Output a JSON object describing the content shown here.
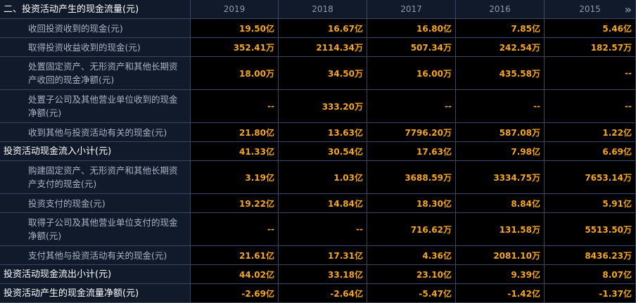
{
  "header": {
    "title": "二、投资活动产生的现金流量(元)",
    "years": [
      "2019",
      "2018",
      "2017",
      "2016",
      "2015"
    ],
    "more_icon": "»"
  },
  "rows": [
    {
      "label": "收回投资收到的现金(元)",
      "type": "item",
      "tall": false,
      "values": [
        "19.50亿",
        "16.67亿",
        "16.80亿",
        "7.85亿",
        "5.46亿"
      ]
    },
    {
      "label": "取得投资收益收到的现金(元)",
      "type": "item",
      "tall": false,
      "values": [
        "352.41万",
        "2114.34万",
        "507.34万",
        "242.54万",
        "182.57万"
      ]
    },
    {
      "label": "处置固定资产、无形资产和其他长期资产收回的现金净额(元)",
      "type": "item",
      "tall": true,
      "values": [
        "18.00万",
        "34.50万",
        "16.00万",
        "435.58万",
        "--"
      ]
    },
    {
      "label": "处置子公司及其他营业单位收到的现金净额(元)",
      "type": "item",
      "tall": true,
      "values": [
        "--",
        "333.20万",
        "--",
        "--",
        "--"
      ]
    },
    {
      "label": "收到其他与投资活动有关的现金(元)",
      "type": "item",
      "tall": false,
      "values": [
        "21.80亿",
        "13.63亿",
        "7796.20万",
        "587.08万",
        "1.22亿"
      ]
    },
    {
      "label": "投资活动现金流入小计(元)",
      "type": "section",
      "tall": false,
      "values": [
        "41.33亿",
        "30.54亿",
        "17.63亿",
        "7.98亿",
        "6.69亿"
      ]
    },
    {
      "label": "购建固定资产、无形资产和其他长期资产支付的现金(元)",
      "type": "item",
      "tall": true,
      "values": [
        "3.19亿",
        "1.03亿",
        "3688.59万",
        "3334.75万",
        "7653.14万"
      ]
    },
    {
      "label": "投资支付的现金(元)",
      "type": "item",
      "tall": false,
      "values": [
        "19.22亿",
        "14.84亿",
        "18.30亿",
        "8.84亿",
        "5.91亿"
      ]
    },
    {
      "label": "取得子公司及其他营业单位支付的现金净额(元)",
      "type": "item",
      "tall": true,
      "values": [
        "--",
        "--",
        "716.62万",
        "131.58万",
        "5513.50万"
      ]
    },
    {
      "label": "支付其他与投资活动有关的现金(元)",
      "type": "item",
      "tall": false,
      "values": [
        "21.61亿",
        "17.31亿",
        "4.36亿",
        "2081.10万",
        "8436.23万"
      ]
    },
    {
      "label": "投资活动现金流出小计(元)",
      "type": "section",
      "tall": false,
      "values": [
        "44.02亿",
        "33.18亿",
        "23.10亿",
        "9.39亿",
        "8.07亿"
      ]
    },
    {
      "label": "投资活动产生的现金流量净额(元)",
      "type": "section",
      "tall": false,
      "values": [
        "-2.69亿",
        "-2.64亿",
        "-5.47亿",
        "-1.42亿",
        "-1.37亿"
      ]
    }
  ],
  "colors": {
    "label_bg": "#101a2b",
    "value_bg": "#000000",
    "value_text": "#f5a623",
    "grid": "#3a4660",
    "label_text": "#a9b4c6",
    "section_text": "#ffffff"
  }
}
